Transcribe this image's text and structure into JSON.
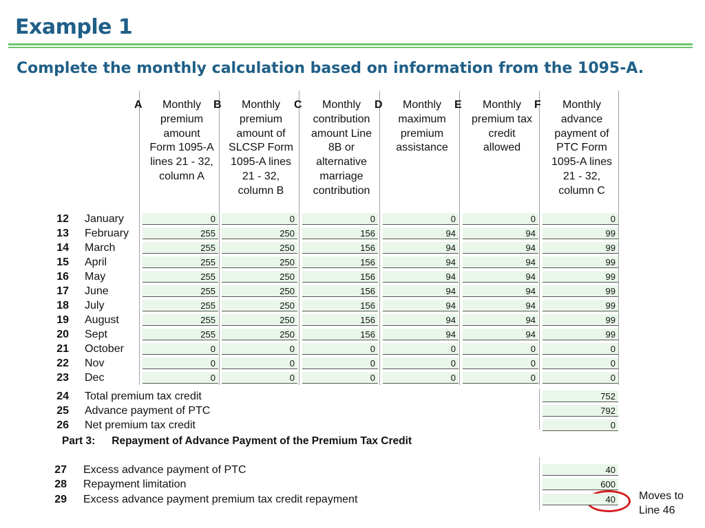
{
  "slide": {
    "title": "Example 1",
    "subtitle": "Complete the monthly calculation based on information from the 1095-A."
  },
  "columns": [
    {
      "letter": "A",
      "text": "Monthly premium amount Form 1095-A lines 21 - 32, column A"
    },
    {
      "letter": "B",
      "text": "Monthly premium amount of SLCSP Form 1095-A lines 21 - 32, column B"
    },
    {
      "letter": "C",
      "text": "Monthly contribution amount Line 8B or alternative marriage contribution"
    },
    {
      "letter": "D",
      "text": "Monthly maximum premium assistance"
    },
    {
      "letter": "E",
      "text": "Monthly premium tax credit allowed"
    },
    {
      "letter": "F",
      "text": "Monthly advance payment of PTC Form 1095-A lines 21 - 32, column C"
    }
  ],
  "rows": [
    {
      "line": "12",
      "label": "January",
      "values": [
        "0",
        "0",
        "0",
        "0",
        "0",
        "0"
      ]
    },
    {
      "line": "13",
      "label": "February",
      "values": [
        "255",
        "250",
        "156",
        "94",
        "94",
        "99"
      ]
    },
    {
      "line": "14",
      "label": "March",
      "values": [
        "255",
        "250",
        "156",
        "94",
        "94",
        "99"
      ]
    },
    {
      "line": "15",
      "label": "April",
      "values": [
        "255",
        "250",
        "156",
        "94",
        "94",
        "99"
      ]
    },
    {
      "line": "16",
      "label": "May",
      "values": [
        "255",
        "250",
        "156",
        "94",
        "94",
        "99"
      ]
    },
    {
      "line": "17",
      "label": "June",
      "values": [
        "255",
        "250",
        "156",
        "94",
        "94",
        "99"
      ]
    },
    {
      "line": "18",
      "label": "July",
      "values": [
        "255",
        "250",
        "156",
        "94",
        "94",
        "99"
      ]
    },
    {
      "line": "19",
      "label": "August",
      "values": [
        "255",
        "250",
        "156",
        "94",
        "94",
        "99"
      ]
    },
    {
      "line": "20",
      "label": "Sept",
      "values": [
        "255",
        "250",
        "156",
        "94",
        "94",
        "99"
      ]
    },
    {
      "line": "21",
      "label": "October",
      "values": [
        "0",
        "0",
        "0",
        "0",
        "0",
        "0"
      ]
    },
    {
      "line": "22",
      "label": "Nov",
      "values": [
        "0",
        "0",
        "0",
        "0",
        "0",
        "0"
      ]
    },
    {
      "line": "23",
      "label": "Dec",
      "values": [
        "0",
        "0",
        "0",
        "0",
        "0",
        "0"
      ]
    }
  ],
  "totals": [
    {
      "line": "24",
      "label": "Total premium tax credit",
      "value": "752"
    },
    {
      "line": "25",
      "label": "Advance payment of PTC",
      "value": "792"
    },
    {
      "line": "26",
      "label": "Net premium tax credit",
      "value": "0"
    }
  ],
  "part3": {
    "part_label": "Part 3:",
    "title": "Repayment of Advance Payment of the Premium Tax Credit",
    "rows": [
      {
        "line": "27",
        "label": "Excess advance payment of PTC",
        "value": "40"
      },
      {
        "line": "28",
        "label": "Repayment limitation",
        "value": "600"
      },
      {
        "line": "29",
        "label": "Excess advance payment premium tax credit repayment",
        "value": "40"
      }
    ]
  },
  "callout": {
    "line1": "Moves to",
    "line2": "Line 46"
  },
  "colors": {
    "title": "#1f5f87",
    "rule": "#6cc36a",
    "cell": "#e9f6e9",
    "highlight": "#d32020"
  }
}
